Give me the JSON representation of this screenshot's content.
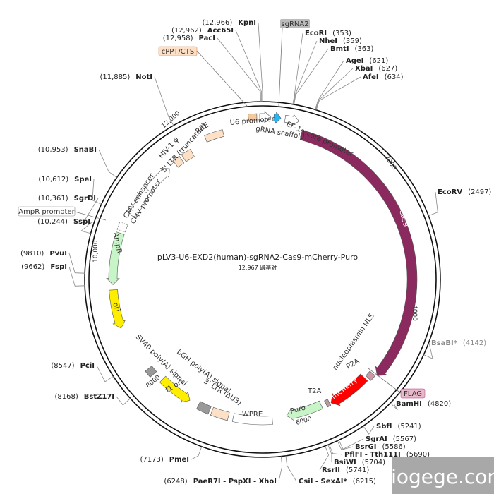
{
  "title": "pLV3-U6-EXD2(human)-sgRNA2-Cas9-mCherry-Puro",
  "length": "12,967 碱基对",
  "features": [
    "sgRNA2",
    "cPPT/CTS",
    "U6 promoter",
    "gRNA scaffold",
    "EF-1α core promoter",
    "Cas9",
    "nucleoplasmin NLS",
    "P2A",
    "FLAG",
    "mCherry",
    "T2A",
    "Puro",
    "WPRE",
    "3' LTR (ΔU3)",
    "bGH poly(A) signal",
    "f1 ori",
    "SV40 poly(A) signal",
    "ori",
    "AmpR",
    "AmpR promoter",
    "CMV promoter",
    "CMV enhancer",
    "5' LTR (truncated)",
    "HIV-1 ψ",
    "RRE"
  ],
  "ticks": [
    "2000",
    "4000",
    "6000",
    "8000",
    "10,000",
    "12,000"
  ],
  "sites": [
    {
      "name": "KpnI",
      "pos": "(12,966)"
    },
    {
      "name": "Acc65I",
      "pos": "(12,962)"
    },
    {
      "name": "PacI",
      "pos": "(12,958)"
    },
    {
      "name": "NotI",
      "pos": "(11,885)"
    },
    {
      "name": "SnaBI",
      "pos": "(10,953)"
    },
    {
      "name": "SpeI",
      "pos": "(10,612)"
    },
    {
      "name": "SgrDI",
      "pos": "(10,361)"
    },
    {
      "name": "SspI",
      "pos": "(10,244)"
    },
    {
      "name": "PvuI",
      "pos": "(9810)"
    },
    {
      "name": "FspI",
      "pos": "(9662)"
    },
    {
      "name": "PciI",
      "pos": "(8547)"
    },
    {
      "name": "BstZ17I",
      "pos": "(8168)"
    },
    {
      "name": "PmeI",
      "pos": "(7173)"
    },
    {
      "name": "PaeR7I - PspXI - XhoI",
      "pos": "(6248)"
    },
    {
      "name": "EcoRI",
      "pos": "(353)"
    },
    {
      "name": "NheI",
      "pos": "(359)"
    },
    {
      "name": "BmtI",
      "pos": "(363)"
    },
    {
      "name": "AgeI",
      "pos": "(621)"
    },
    {
      "name": "XbaI",
      "pos": "(627)"
    },
    {
      "name": "AfeI",
      "pos": "(634)"
    },
    {
      "name": "EcoRV",
      "pos": "(2497)"
    },
    {
      "name": "BsaBI*",
      "pos": "(4142)"
    },
    {
      "name": "BamHI",
      "pos": "(4820)"
    },
    {
      "name": "SbfI",
      "pos": "(5241)"
    },
    {
      "name": "SgrAI",
      "pos": "(5567)"
    },
    {
      "name": "BsrGI",
      "pos": "(5586)"
    },
    {
      "name": "PflFI - Tth111I",
      "pos": "(5690)"
    },
    {
      "name": "BsiWI",
      "pos": "(5704)"
    },
    {
      "name": "RsrII",
      "pos": "(5741)"
    },
    {
      "name": "CsiI - SexAI*",
      "pos": "(6215)"
    }
  ],
  "watermark": "biogege.com"
}
